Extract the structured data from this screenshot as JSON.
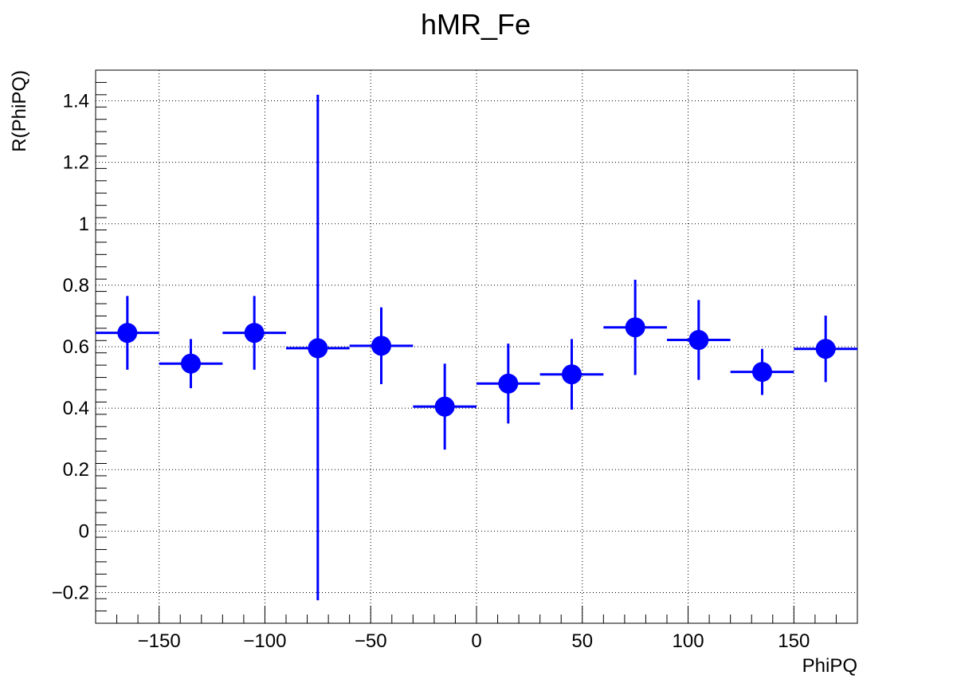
{
  "chart_data": {
    "type": "scatter",
    "title": "hMR_Fe",
    "xlabel": "PhiPQ",
    "ylabel": "R(PhiPQ)",
    "xlim": [
      -180,
      180
    ],
    "ylim": [
      -0.3,
      1.5
    ],
    "grid": true,
    "marker_color": "#0000ff",
    "x_ticks": [
      -150,
      -100,
      -50,
      0,
      50,
      100,
      150
    ],
    "x_tick_labels": [
      "−150",
      "−100",
      "−50",
      "0",
      "50",
      "100",
      "150"
    ],
    "y_ticks": [
      -0.2,
      0,
      0.2,
      0.4,
      0.6,
      0.8,
      1,
      1.2,
      1.4
    ],
    "y_tick_labels": [
      "−0.2",
      "0",
      "0.2",
      "0.4",
      "0.6",
      "0.8",
      "1",
      "1.2",
      "1.4"
    ],
    "points": [
      {
        "x": -165,
        "y": 0.645,
        "xerr": 15,
        "yerr_low": 0.12,
        "yerr_high": 0.12
      },
      {
        "x": -135,
        "y": 0.545,
        "xerr": 15,
        "yerr_low": 0.08,
        "yerr_high": 0.08
      },
      {
        "x": -105,
        "y": 0.645,
        "xerr": 15,
        "yerr_low": 0.12,
        "yerr_high": 0.12
      },
      {
        "x": -75,
        "y": 0.595,
        "xerr": 15,
        "yerr_low": 0.82,
        "yerr_high": 0.825
      },
      {
        "x": -45,
        "y": 0.603,
        "xerr": 15,
        "yerr_low": 0.125,
        "yerr_high": 0.125
      },
      {
        "x": -15,
        "y": 0.405,
        "xerr": 15,
        "yerr_low": 0.14,
        "yerr_high": 0.14
      },
      {
        "x": 15,
        "y": 0.48,
        "xerr": 15,
        "yerr_low": 0.13,
        "yerr_high": 0.13
      },
      {
        "x": 45,
        "y": 0.51,
        "xerr": 15,
        "yerr_low": 0.115,
        "yerr_high": 0.115
      },
      {
        "x": 75,
        "y": 0.663,
        "xerr": 15,
        "yerr_low": 0.155,
        "yerr_high": 0.155
      },
      {
        "x": 105,
        "y": 0.622,
        "xerr": 15,
        "yerr_low": 0.13,
        "yerr_high": 0.13
      },
      {
        "x": 135,
        "y": 0.518,
        "xerr": 15,
        "yerr_low": 0.075,
        "yerr_high": 0.075
      },
      {
        "x": 165,
        "y": 0.593,
        "xerr": 15,
        "yerr_low": 0.108,
        "yerr_high": 0.108
      }
    ]
  }
}
